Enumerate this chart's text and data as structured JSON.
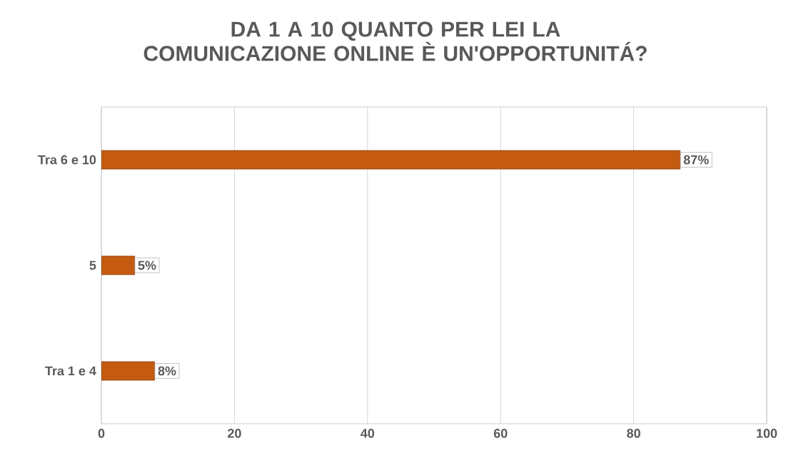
{
  "chart_data": {
    "type": "bar",
    "orientation": "horizontal",
    "title": "DA 1 A 10 QUANTO PER LEI LA COMUNICAZIONE ONLINE È UN'OPPORTUNITÁ?",
    "categories": [
      "Tra 6 e 10",
      "5",
      "Tra 1 e 4"
    ],
    "values": [
      87,
      5,
      8
    ],
    "value_labels": [
      "87%",
      "5%",
      "8%"
    ],
    "color": "#c55a11",
    "xlim": [
      0,
      100
    ],
    "xticks": [
      0,
      20,
      40,
      60,
      80,
      100
    ],
    "grid": "x"
  }
}
